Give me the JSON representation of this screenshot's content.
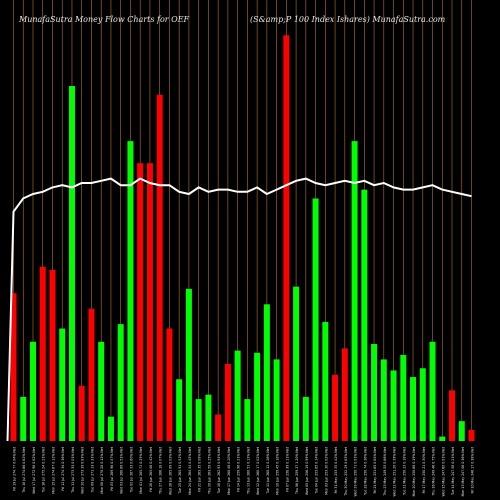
{
  "title_left": "MunafaSutra  Money Flow  Charts for OEF",
  "title_right": "(S&amp;P 100   Index Ishares) MunafaSutra.com",
  "colors": {
    "background": "#000000",
    "up": "#00ff00",
    "down": "#ff0000",
    "grid": "#b8732c",
    "line": "#ffffff",
    "text": "#e8e8e8"
  },
  "chart_data": {
    "type": "bar",
    "title": "MunafaSutra  Money Flow  Charts for OEF",
    "subtitle": "(S&amp;P 100   Index Ishares) MunafaSutra.com",
    "xlabel": "",
    "ylabel": "",
    "ylim": [
      0,
      100
    ],
    "grid": true,
    "categories": [
      "Fri 19 Jul 274.77 0.04% Net",
      "Thu 18 Jul 274.66 0.62% Net",
      "Wed 17 Jul 272.98 0.82% Net",
      "Tue 16 Jul 275.24 0.21% Net",
      "Mon 15 Jul 274.67 0.12% Net",
      "Fri 12 Jul 274.34 0.36% Net",
      "Thu 11 Jul 273.35 0.01% Net",
      "Wed 10 Jul 273.39 0.83% Net",
      "Tue 09 Jul 271.13 0.31% Net",
      "Mon 08 Jul 270.28 0.12% Net",
      "Fri 05 Jul 269.96 0.47% Net",
      "Wed 03 Jul 268.69 0.51% Net",
      "Tue 02 Jul 267.33 0.60% Net",
      "Mon 01 Jul 265.72 0.25% Net",
      "Fri 28 Jun 265.06 0.42% Net",
      "Thu 27 Jun 266.18 0.07% Net",
      "Wed 26 Jun 265.99 0.03% Net",
      "Tue 25 Jun 265.91 0.52% Net",
      "Mon 24 Jun 264.54 0.45% Net",
      "Fri 21 Jun 263.35 0.09% Net",
      "Thu 20 Jun 263.59 0.25% Net",
      "Tue 18 Jun 262.93 0.94% Net",
      "Mon 17 Jun 260.48 0.20% Net",
      "Fri 14 Jun 259.96 0.21% Net",
      "Thu 13 Jun 260.51 0.13% Net",
      "Wed 12 Jun 260.17 0.02% Net",
      "Tue 11 Jun 260.12 0.26% Net",
      "Mon 10 Jun 259.45 0.18% Net",
      "Fri 07 Jun 258.99 0.11% Net",
      "Thu 06 Jun 259.27 1.20% Net",
      "Wed 05 Jun 256.19 0.99% Net",
      "Tue 04 Jun 253.65 0.14% Net",
      "Mon 03 Jun 253.30 0.02% Net",
      "Fri 31 May 253.35 0.42% Net",
      "Thu 30 May 252.29 0.63% Net",
      "Wed 29 May 250.71 0.01% Net",
      "Tue 28 May 250.74 0.36% Net",
      "Fri 24 May 251.65 0.84% Net",
      "Thu 23 May 249.55 0.66% Net",
      "Wed 22 May 251.20 0.39% Net",
      "Tue 21 May 250.23 0.18% Net",
      "Mon 20 May 250.68 0.19% Net",
      "Fri 17 May 250.21 0.30% Net",
      "Thu 16 May 249.46 0.75% Net",
      "Wed 15 May 247.60 0.01% Net",
      "Tue 14 May 247.58 0.21% Net",
      "Mon 13 May 247.06 0.36% Net",
      "Fri 10 May 246.17 0.38% Net"
    ],
    "bar_direction": [
      "down",
      "up",
      "up",
      "down",
      "down",
      "up",
      "up",
      "down",
      "down",
      "up",
      "up",
      "up",
      "up",
      "down",
      "down",
      "down",
      "down",
      "up",
      "up",
      "up",
      "up",
      "down",
      "down",
      "up",
      "up",
      "up",
      "up",
      "up",
      "down",
      "up",
      "up",
      "up",
      "up",
      "down",
      "down",
      "up",
      "up",
      "up",
      "up",
      "up",
      "up",
      "up",
      "up",
      "up",
      "up",
      "down",
      "up",
      "down"
    ],
    "values": [
      33.5,
      10,
      22.5,
      39.5,
      38.8,
      25.5,
      80.5,
      12.5,
      30,
      22.5,
      5.5,
      26.5,
      68,
      63,
      63,
      78.5,
      25.5,
      14,
      34.5,
      9.5,
      10.5,
      6,
      17.5,
      20.5,
      9.5,
      20,
      31,
      18.5,
      92,
      35,
      10,
      55,
      27,
      15,
      21,
      68,
      57,
      22,
      18.5,
      16,
      19.5,
      14.5,
      16.5,
      22.5,
      1,
      11.5,
      4.5,
      2.5
    ],
    "line": [
      52,
      55,
      56,
      56.5,
      57.5,
      58,
      57.5,
      58.5,
      58.5,
      59,
      59.5,
      58,
      58,
      59.5,
      58.5,
      58,
      58,
      56.5,
      56,
      57.5,
      56.5,
      57,
      57,
      56.5,
      56.5,
      57.5,
      56,
      57,
      58,
      59,
      59.5,
      58.5,
      58,
      58.5,
      59,
      58.5,
      59,
      58,
      58.5,
      57.5,
      57,
      57,
      57.5,
      58,
      57,
      56.5,
      56,
      55.5
    ]
  }
}
